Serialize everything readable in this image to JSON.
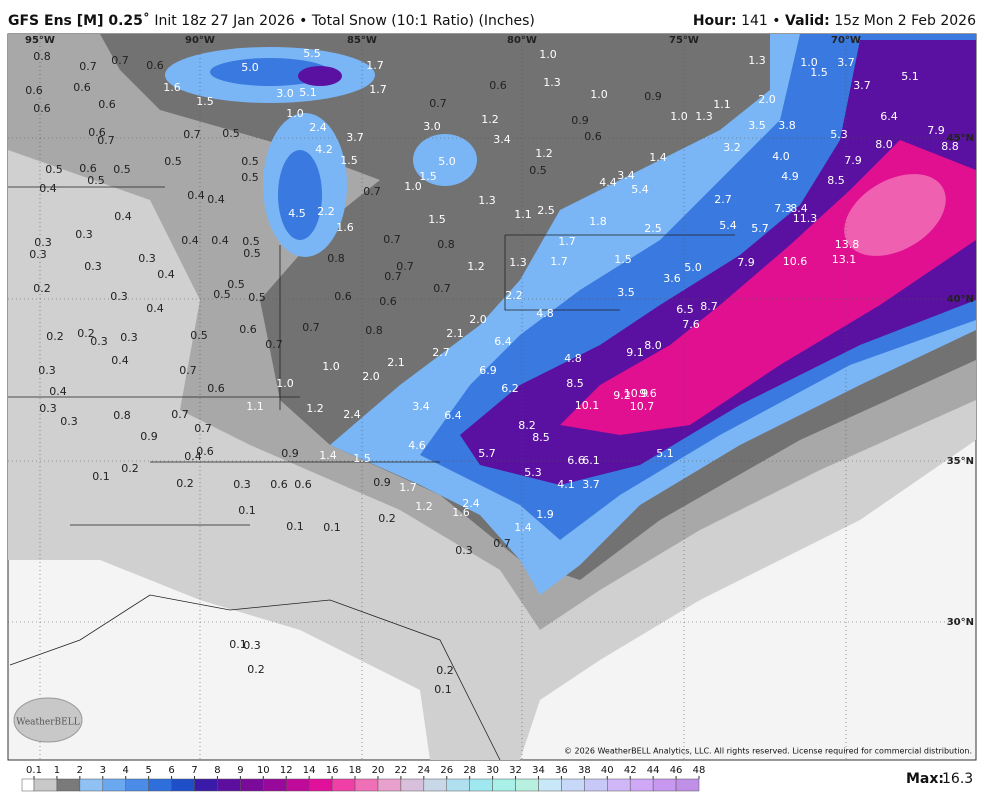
{
  "header": {
    "model": "GFS Ens [M] 0.25˚",
    "run": "Init 18z 27 Jan 2026 • Total Snow (10:1 Ratio) (Inches)",
    "hour_label": "Hour:",
    "hour": "141 •",
    "valid_label": "Valid:",
    "valid": "15z Mon 2 Feb 2026"
  },
  "map": {
    "longitude_labels": [
      "95°W",
      "90°W",
      "85°W",
      "80°W",
      "75°W",
      "70°W"
    ],
    "latitude_labels": [
      "45°N",
      "40°N",
      "35°N",
      "30°N"
    ],
    "snow_labels": [
      "0.8",
      "0.7",
      "0.7",
      "0.6",
      "1.6",
      "1.5",
      "5.0",
      "5.5",
      "3.0",
      "5.1",
      "1.7",
      "1.7",
      "0.6",
      "0.6",
      "0.6",
      "0.6",
      "0.7",
      "0.6",
      "1.0",
      "1.3",
      "1.0",
      "0.9",
      "1.3",
      "1.0",
      "1.5",
      "3.7",
      "5.1",
      "3.7",
      "2.0",
      "1.1",
      "1.0",
      "1.3",
      "0.9",
      "0.6",
      "1.0",
      "2.4",
      "3.7",
      "3.0",
      "1.2",
      "3.4",
      "1.2",
      "3.5",
      "3.8",
      "5.3",
      "6.4",
      "7.9",
      "8.8",
      "0.6",
      "0.7",
      "0.7",
      "0.5",
      "4.2",
      "1.5",
      "5.0",
      "3.2",
      "4.0",
      "7.9",
      "8.0",
      "0.5",
      "0.6",
      "0.5",
      "0.5",
      "0.5",
      "0.5",
      "0.5",
      "0.5",
      "1.4",
      "4.4",
      "3.4",
      "4.9",
      "8.5",
      "0.4",
      "0.4",
      "0.4",
      "1.5",
      "1.0",
      "0.7",
      "5.4",
      "2.7",
      "1.3",
      "7.3",
      "8.4",
      "11.3",
      "4.5",
      "2.2",
      "1.6",
      "1.1",
      "2.5",
      "1.8",
      "0.4",
      "0.3",
      "0.3",
      "0.3",
      "0.4",
      "0.4",
      "0.5",
      "0.5",
      "0.7",
      "0.8",
      "1.5",
      "1.7",
      "2.5",
      "5.4",
      "5.7",
      "13.8",
      "13.1",
      "0.3",
      "0.3",
      "0.4",
      "0.8",
      "0.7",
      "0.7",
      "1.2",
      "1.3",
      "1.7",
      "1.5",
      "5.0",
      "7.9",
      "10.6",
      "0.2",
      "0.3",
      "0.4",
      "0.5",
      "0.5",
      "0.5",
      "0.6",
      "0.6",
      "0.7",
      "2.2",
      "3.5",
      "3.6",
      "0.2",
      "0.2",
      "0.3",
      "0.3",
      "0.5",
      "0.6",
      "0.7",
      "0.8",
      "2.1",
      "2.0",
      "4.8",
      "6.5",
      "8.7",
      "7.6",
      "0.4",
      "0.7",
      "6.4",
      "4.8",
      "8.0",
      "9.1",
      "0.3",
      "0.7",
      "1.0",
      "2.1",
      "2.7",
      "6.9",
      "0.4",
      "1.0",
      "2.0",
      "6.2",
      "8.5",
      "9.2",
      "10.9",
      "9.6",
      "0.3",
      "0.6",
      "1.1",
      "1.2",
      "2.4",
      "3.4",
      "0.3",
      "0.8",
      "0.7",
      "0.7",
      "10.1",
      "10.7",
      "0.9",
      "6.4",
      "8.2",
      "8.5",
      "4.6",
      "0.4",
      "0.6",
      "0.9",
      "1.4",
      "1.5",
      "5.7",
      "6.6",
      "6.1",
      "5.1",
      "0.2",
      "0.1",
      "0.2",
      "0.3",
      "0.6",
      "0.6",
      "0.9",
      "1.7",
      "5.3",
      "4.1",
      "3.7",
      "1.2",
      "1.6",
      "2.4",
      "1.9",
      "0.1",
      "0.2",
      "0.1",
      "0.1",
      "1.4",
      "0.3",
      "0.7",
      "0.1",
      "0.3",
      "0.2",
      "0.2",
      "0.1"
    ],
    "logo": "WeatherBELL",
    "copyright": "© 2026 WeatherBELL Analytics, LLC. All rights reserved. License required for commercial distribution."
  },
  "colorbar": {
    "ticks": [
      0.1,
      1,
      2,
      3,
      4,
      5,
      6,
      7,
      8,
      9,
      10,
      12,
      14,
      16,
      18,
      20,
      22,
      24,
      26,
      28,
      30,
      32,
      34,
      36,
      38,
      40,
      42,
      44,
      46,
      48
    ],
    "colors": [
      "#c8c8c8",
      "#7a7a7a",
      "#8fc1f5",
      "#6aa8f0",
      "#4a8ce8",
      "#2f6fdc",
      "#1f4fc8",
      "#3a1aa8",
      "#5c0f9e",
      "#7a0a9a",
      "#98089a",
      "#c00a9a",
      "#e0109a",
      "#f040a8",
      "#f070b8",
      "#e8a0cc",
      "#d8c0dc",
      "#c8d8e8",
      "#b0e0f0",
      "#a0e8f0",
      "#a8f0e8",
      "#b8f0e0",
      "#c8e8f8",
      "#c8d8f8",
      "#c8c8f8",
      "#d0b8f8",
      "#d0a8f8",
      "#c898f0",
      "#c090e8"
    ]
  },
  "max": {
    "label": "Max:",
    "value": 16.3
  }
}
